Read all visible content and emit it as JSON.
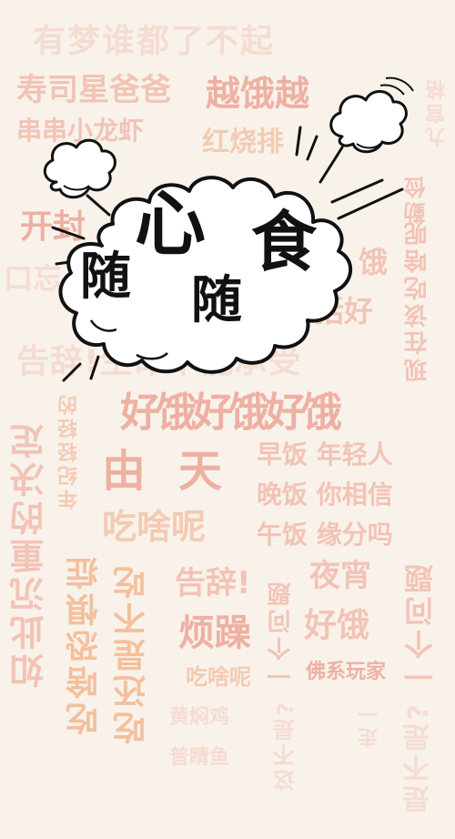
{
  "watermark": {
    "row1": "有梦谁都了不起",
    "row2": "寿司星爸爸",
    "row2b": "越饿越",
    "row3": "串串小龙虾",
    "row4": "红烧排",
    "row5": "开封",
    "row6": "口忘",
    "row7": "饿",
    "row8": "括好",
    "row9": "告辞!生命不能承受",
    "row10": "好饿好饿好饿",
    "row11": "由天",
    "row12": "早饭 年轻人",
    "row13": "晚饭 你相信",
    "row14": "吃啥呢",
    "row15": "午饭 缘分吗",
    "row16": "告辞!",
    "row17": "夜宵",
    "row18": "烦躁",
    "row19": "好饿",
    "row20": "吃啥呢",
    "row21": "佛系玩家",
    "row22": "黄焖鸡",
    "row23": "普睛鱼",
    "col_left1": "如此沉重的决定",
    "col_left2": "年纪轻轻的",
    "col_left3": "吃啥恐惧症",
    "col_left4": "吃还是不吃",
    "col_mid": "一个问题",
    "col_right1": "现在该吃啥呢",
    "col_right2": "一个问题",
    "col_right3": "九宫格",
    "col_right4": "勤俭",
    "col_bottom1": "这不是?",
    "col_bottom2": "走一",
    "col_bottom3": "是不是?"
  },
  "headline": {
    "sui1": "随",
    "xin": "心",
    "sui2": "随",
    "shi": "食"
  }
}
